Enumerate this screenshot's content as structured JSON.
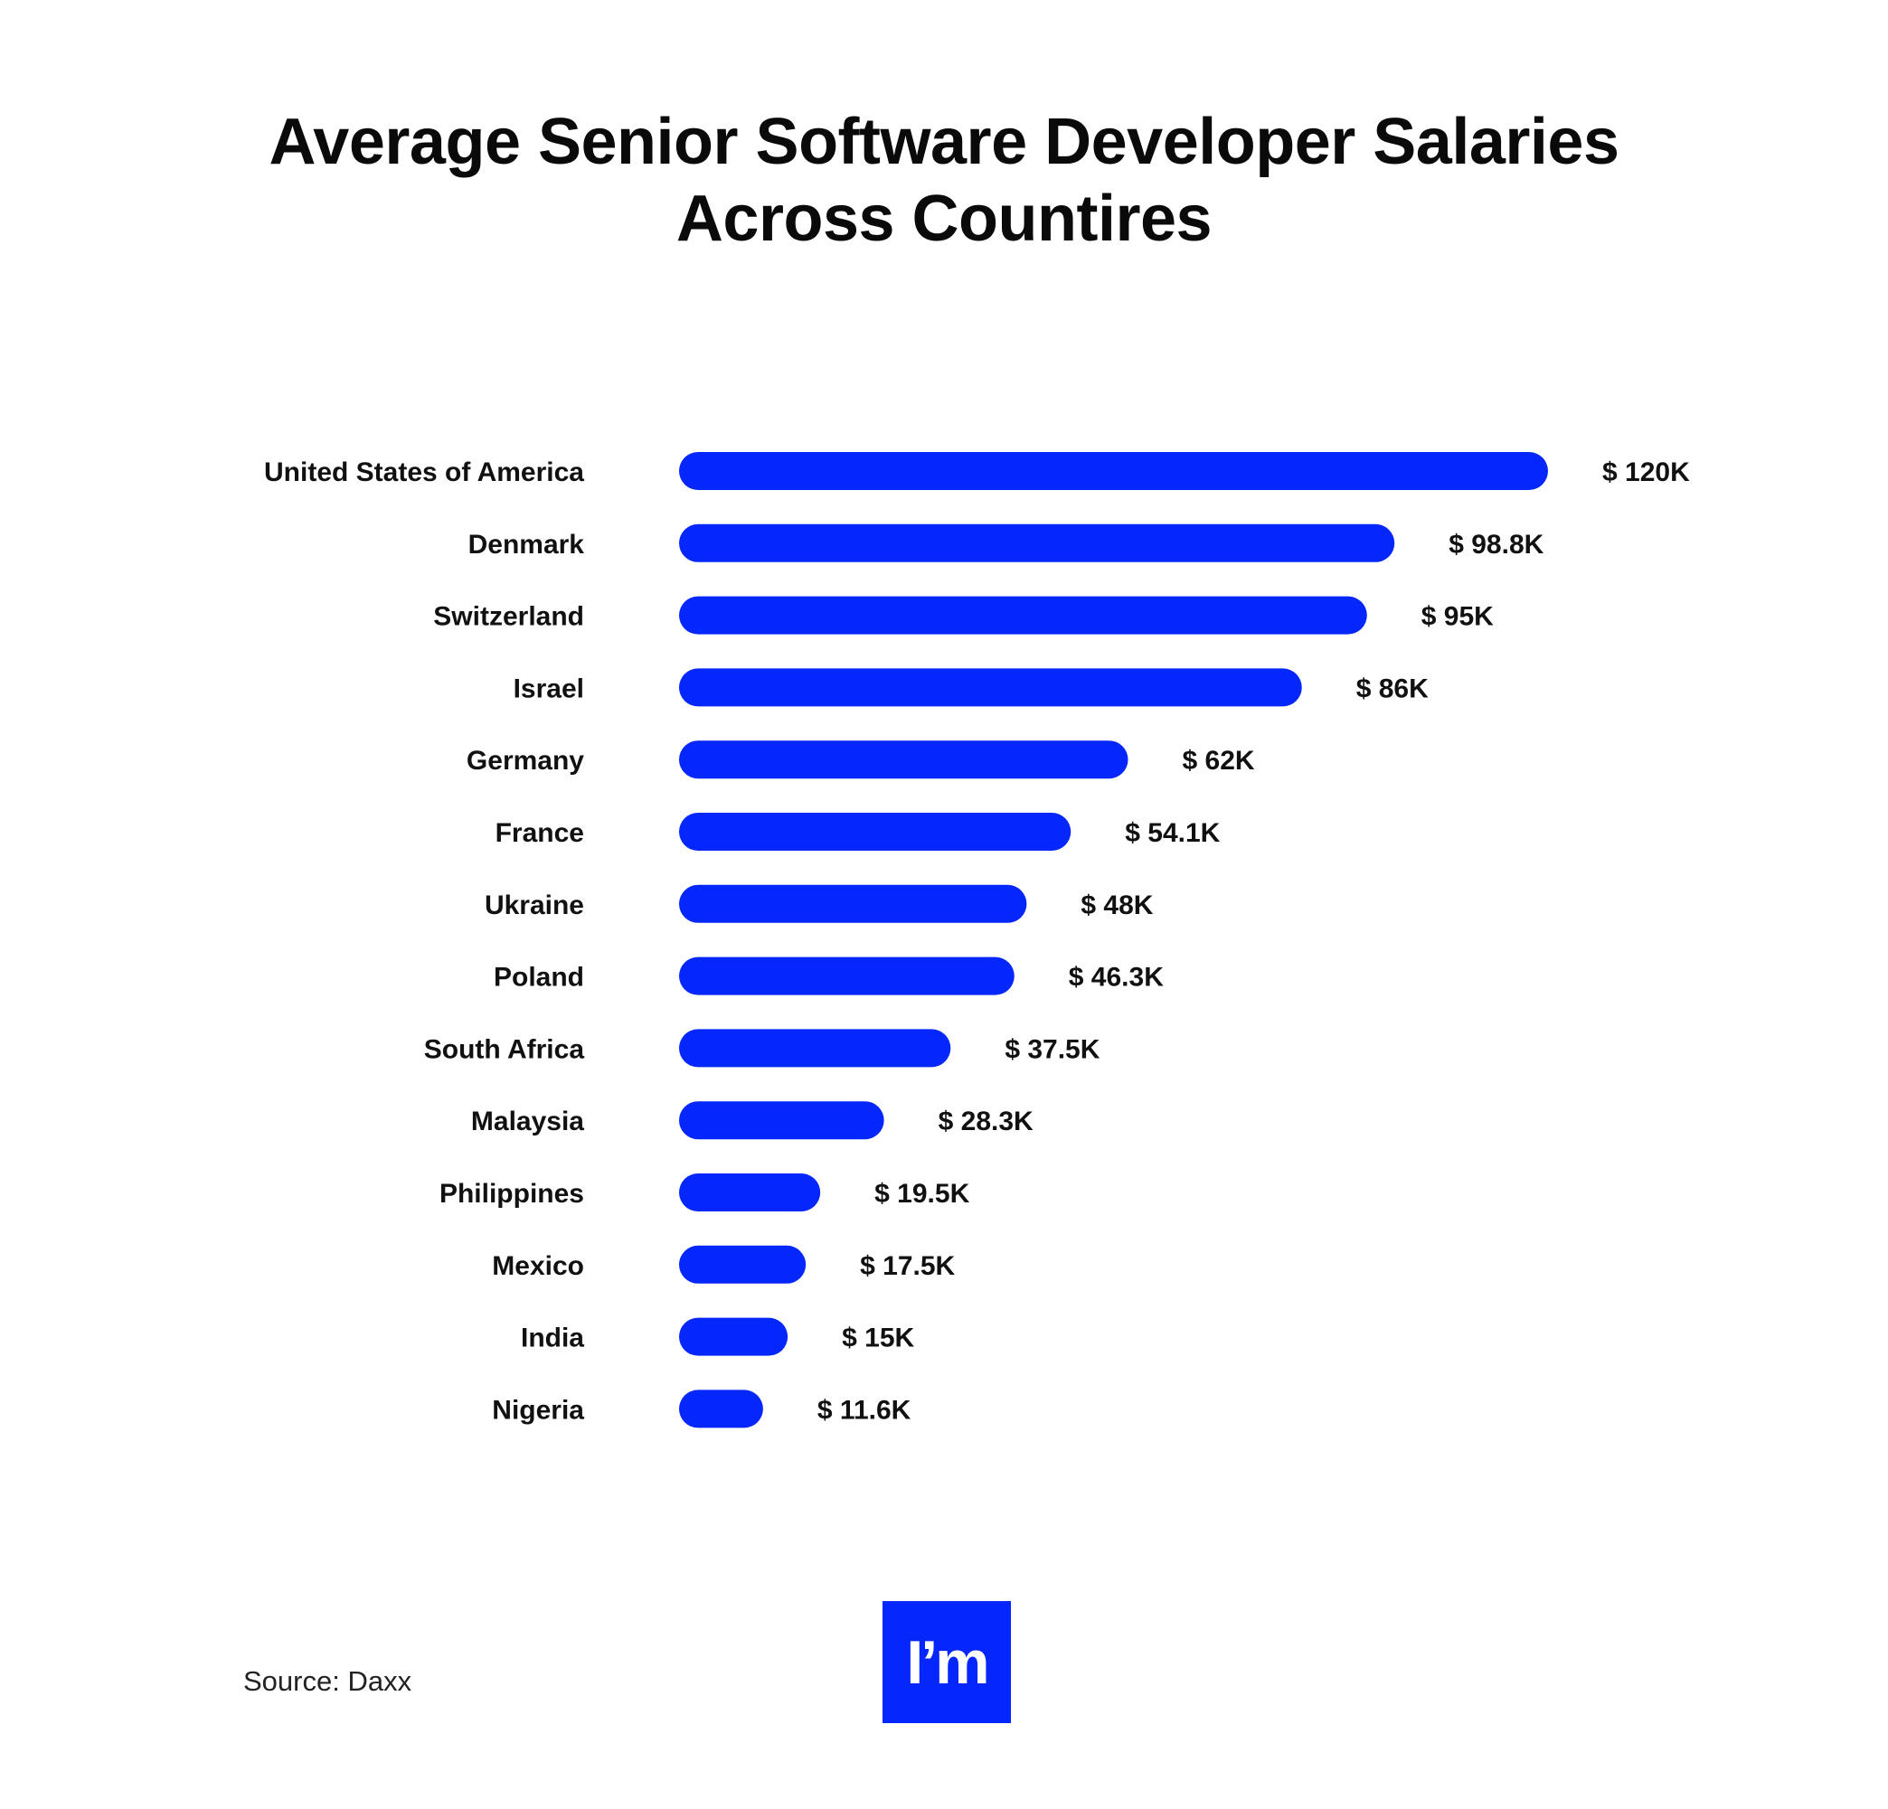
{
  "title": {
    "line1": "Average Senior Software Developer Salaries",
    "line2": "Across Countires"
  },
  "source": "Source: Daxx",
  "logo": {
    "text": "I’m",
    "background": "#0527FC"
  },
  "colors": {
    "bar": "#0527FC",
    "text": "#111111",
    "background": "#FFFFFF"
  },
  "chart_data": {
    "type": "bar",
    "orientation": "horizontal",
    "title": "Average Senior Software Developer Salaries Across Countires",
    "categories": [
      "United States of America",
      "Denmark",
      "Switzerland",
      "Israel",
      "Germany",
      "France",
      "Ukraine",
      "Poland",
      "South Africa",
      "Malaysia",
      "Philippines",
      "Mexico",
      "India",
      "Nigeria"
    ],
    "values": [
      120000,
      98800,
      95000,
      86000,
      62000,
      54100,
      48000,
      46300,
      37500,
      28300,
      19500,
      17500,
      15000,
      11600
    ],
    "value_labels": [
      "$ 120K",
      "$ 98.8K",
      "$ 95K",
      "$ 86K",
      "$ 62K",
      "$ 54.1K",
      "$ 48K",
      "$ 46.3K",
      "$ 37.5K",
      "$ 28.3K",
      "$ 19.5K",
      "$ 17.5K",
      "$ 15K",
      "$ 11.6K"
    ],
    "xlim": [
      0,
      120000
    ],
    "grid": false,
    "legend": "none",
    "xlabel": "",
    "ylabel": ""
  }
}
